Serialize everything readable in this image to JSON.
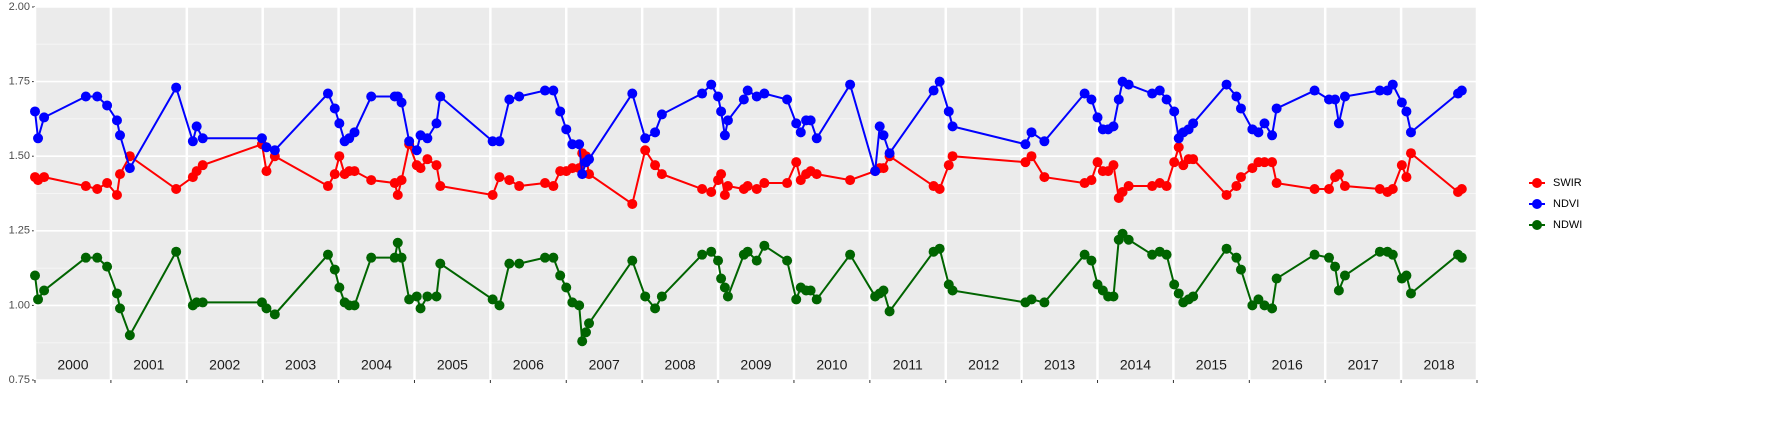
{
  "chart_data": {
    "type": "line",
    "x": [
      2000.0,
      2000.04,
      2000.12,
      2000.67,
      2000.82,
      2000.95,
      2001.08,
      2001.12,
      2001.25,
      2001.86,
      2002.08,
      2002.13,
      2002.21,
      2002.99,
      2003.05,
      2003.16,
      2003.86,
      2003.95,
      2004.01,
      2004.08,
      2004.14,
      2004.21,
      2004.43,
      2004.74,
      2004.78,
      2004.83,
      2004.93,
      2005.03,
      2005.08,
      2005.17,
      2005.29,
      2005.34,
      2006.03,
      2006.12,
      2006.25,
      2006.38,
      2006.72,
      2006.83,
      2006.92,
      2007.0,
      2007.08,
      2007.17,
      2007.21,
      2007.26,
      2007.3,
      2007.87,
      2008.04,
      2008.17,
      2008.26,
      2008.79,
      2008.91,
      2009.0,
      2009.04,
      2009.09,
      2009.13,
      2009.34,
      2009.39,
      2009.51,
      2009.61,
      2009.91,
      2010.03,
      2010.09,
      2010.16,
      2010.22,
      2010.3,
      2010.74,
      2011.07,
      2011.13,
      2011.18,
      2011.26,
      2011.84,
      2011.92,
      2012.04,
      2012.09,
      2013.05,
      2013.13,
      2013.3,
      2013.83,
      2013.92,
      2014.0,
      2014.07,
      2014.14,
      2014.21,
      2014.28,
      2014.33,
      2014.41,
      2014.72,
      2014.82,
      2014.91,
      2015.01,
      2015.07,
      2015.13,
      2015.2,
      2015.26,
      2015.7,
      2015.83,
      2015.89,
      2016.04,
      2016.12,
      2016.2,
      2016.3,
      2016.36,
      2016.86,
      2017.05,
      2017.13,
      2017.18,
      2017.26,
      2017.72,
      2017.82,
      2017.89,
      2018.01,
      2018.07,
      2018.13,
      2018.75,
      2018.8
    ],
    "series": [
      {
        "name": "SWIR",
        "color": "#ff0000",
        "values": [
          1.43,
          1.42,
          1.43,
          1.4,
          1.39,
          1.41,
          1.37,
          1.44,
          1.5,
          1.39,
          1.43,
          1.45,
          1.47,
          1.54,
          1.45,
          1.5,
          1.4,
          1.44,
          1.5,
          1.44,
          1.45,
          1.45,
          1.42,
          1.41,
          1.37,
          1.42,
          1.54,
          1.47,
          1.46,
          1.49,
          1.47,
          1.4,
          1.37,
          1.43,
          1.42,
          1.4,
          1.41,
          1.4,
          1.45,
          1.45,
          1.46,
          1.46,
          1.51,
          1.5,
          1.44,
          1.34,
          1.52,
          1.47,
          1.44,
          1.39,
          1.38,
          1.42,
          1.44,
          1.37,
          1.4,
          1.39,
          1.4,
          1.39,
          1.41,
          1.41,
          1.48,
          1.42,
          1.44,
          1.45,
          1.44,
          1.42,
          1.45,
          1.46,
          1.46,
          1.5,
          1.4,
          1.39,
          1.47,
          1.5,
          1.48,
          1.5,
          1.43,
          1.41,
          1.42,
          1.48,
          1.45,
          1.45,
          1.47,
          1.36,
          1.38,
          1.4,
          1.4,
          1.41,
          1.4,
          1.48,
          1.53,
          1.47,
          1.49,
          1.49,
          1.37,
          1.4,
          1.43,
          1.46,
          1.48,
          1.48,
          1.48,
          1.41,
          1.39,
          1.39,
          1.43,
          1.44,
          1.4,
          1.39,
          1.38,
          1.39,
          1.47,
          1.43,
          1.51,
          1.38,
          1.39
        ]
      },
      {
        "name": "NDVI",
        "color": "#0000ff",
        "values": [
          1.65,
          1.56,
          1.63,
          1.7,
          1.7,
          1.67,
          1.62,
          1.57,
          1.46,
          1.73,
          1.55,
          1.6,
          1.56,
          1.56,
          1.53,
          1.52,
          1.71,
          1.66,
          1.61,
          1.55,
          1.56,
          1.58,
          1.7,
          1.7,
          1.7,
          1.68,
          1.55,
          1.52,
          1.57,
          1.56,
          1.61,
          1.7,
          1.55,
          1.55,
          1.69,
          1.7,
          1.72,
          1.72,
          1.65,
          1.59,
          1.54,
          1.54,
          1.44,
          1.48,
          1.49,
          1.71,
          1.56,
          1.58,
          1.64,
          1.71,
          1.74,
          1.7,
          1.65,
          1.57,
          1.62,
          1.69,
          1.72,
          1.7,
          1.71,
          1.69,
          1.61,
          1.58,
          1.62,
          1.62,
          1.56,
          1.74,
          1.45,
          1.6,
          1.57,
          1.51,
          1.72,
          1.75,
          1.65,
          1.6,
          1.54,
          1.58,
          1.55,
          1.71,
          1.69,
          1.63,
          1.59,
          1.59,
          1.6,
          1.69,
          1.75,
          1.74,
          1.71,
          1.72,
          1.69,
          1.65,
          1.56,
          1.58,
          1.59,
          1.61,
          1.74,
          1.7,
          1.66,
          1.59,
          1.58,
          1.61,
          1.57,
          1.66,
          1.72,
          1.69,
          1.69,
          1.61,
          1.7,
          1.72,
          1.72,
          1.74,
          1.68,
          1.65,
          1.58,
          1.71,
          1.72
        ]
      },
      {
        "name": "NDWI",
        "color": "#006400",
        "values": [
          1.1,
          1.02,
          1.05,
          1.16,
          1.16,
          1.13,
          1.04,
          0.99,
          0.9,
          1.18,
          1.0,
          1.01,
          1.01,
          1.01,
          0.99,
          0.97,
          1.17,
          1.12,
          1.06,
          1.01,
          1.0,
          1.0,
          1.16,
          1.16,
          1.21,
          1.16,
          1.02,
          1.03,
          0.99,
          1.03,
          1.03,
          1.14,
          1.02,
          1.0,
          1.14,
          1.14,
          1.16,
          1.16,
          1.1,
          1.06,
          1.01,
          1.0,
          0.88,
          0.91,
          0.94,
          1.15,
          1.03,
          0.99,
          1.03,
          1.17,
          1.18,
          1.15,
          1.09,
          1.06,
          1.03,
          1.17,
          1.18,
          1.15,
          1.2,
          1.15,
          1.02,
          1.06,
          1.05,
          1.05,
          1.02,
          1.17,
          1.03,
          1.04,
          1.05,
          0.98,
          1.18,
          1.19,
          1.07,
          1.05,
          1.01,
          1.02,
          1.01,
          1.17,
          1.15,
          1.07,
          1.05,
          1.03,
          1.03,
          1.22,
          1.24,
          1.22,
          1.17,
          1.18,
          1.17,
          1.07,
          1.04,
          1.01,
          1.02,
          1.03,
          1.19,
          1.16,
          1.12,
          1.0,
          1.02,
          1.0,
          0.99,
          1.09,
          1.17,
          1.16,
          1.13,
          1.05,
          1.1,
          1.18,
          1.18,
          1.17,
          1.09,
          1.1,
          1.04,
          1.17,
          1.16
        ]
      }
    ],
    "xlim": [
      2000,
      2019
    ],
    "xticks": [
      2000,
      2001,
      2002,
      2003,
      2004,
      2005,
      2006,
      2007,
      2008,
      2009,
      2010,
      2011,
      2012,
      2013,
      2014,
      2015,
      2016,
      2017,
      2018,
      2019
    ],
    "year_labels": [
      "2000",
      "2001",
      "2002",
      "2003",
      "2004",
      "2005",
      "2006",
      "2007",
      "2008",
      "2009",
      "2010",
      "2011",
      "2012",
      "2013",
      "2014",
      "2015",
      "2016",
      "2017",
      "2018"
    ],
    "ylim": [
      0.75,
      2.0
    ],
    "yticks": [
      0.75,
      {
        "value": 1,
        "label": "1.00"
      },
      1.25,
      {
        "value": 1.5,
        "label": "1.50"
      },
      1.75,
      {
        "value": 2,
        "label": "2.00"
      }
    ],
    "grid": true,
    "legend": "right"
  }
}
